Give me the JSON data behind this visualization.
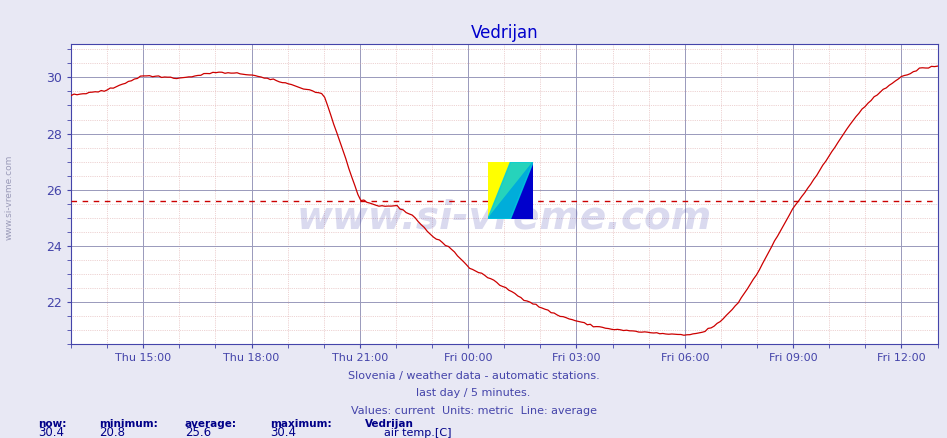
{
  "title": "Vedrijan",
  "title_color": "#0000cc",
  "line_color": "#cc0000",
  "avg_line_color": "#cc0000",
  "avg_line_style": "dotted",
  "average_value": 25.6,
  "min_value": 20.8,
  "max_value": 30.4,
  "now_value": 30.4,
  "ylabel_ticks": [
    22,
    24,
    26,
    28,
    30
  ],
  "ylim": [
    20.5,
    31.2
  ],
  "bg_color": "#e8e8f4",
  "plot_bg_color": "#ffffff",
  "grid_color_major": "#9999bb",
  "grid_color_minor": "#ddaaaa",
  "x_tick_labels": [
    "Thu 15:00",
    "Thu 18:00",
    "Thu 21:00",
    "Fri 00:00",
    "Fri 03:00",
    "Fri 06:00",
    "Fri 09:00",
    "Fri 12:00"
  ],
  "tick_positions": [
    2,
    5,
    8,
    11,
    14,
    17,
    20,
    23
  ],
  "watermark_text": "www.si-vreme.com",
  "sub_text1": "Slovenia / weather data - automatic stations.",
  "sub_text2": "last day / 5 minutes.",
  "sub_text3": "Values: current  Units: metric  Line: average",
  "legend_label": "air temp.[C]",
  "legend_station": "Vedrijan",
  "left_label": "www.si-vreme.com",
  "xlim": [
    0,
    24
  ],
  "x_start_hour": 0
}
